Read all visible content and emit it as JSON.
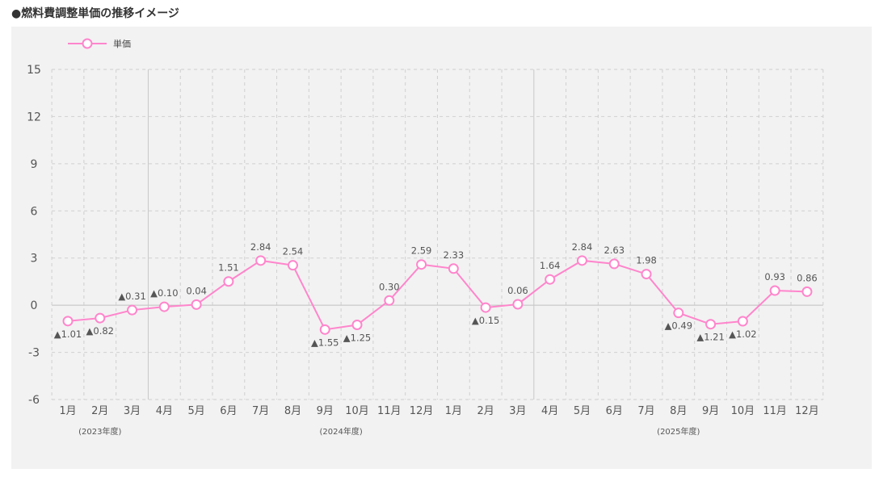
{
  "page_title": "●燃料費調整単価の推移イメージ",
  "colors": {
    "line": "#ff85cc",
    "marker_fill": "#ffffff",
    "panel_bg": "#f2f2f2",
    "grid": "#cfcfcf",
    "label": "#555555"
  },
  "chart_data": {
    "type": "line",
    "title": "燃料費調整単価の推移イメージ",
    "xlabel": "",
    "ylabel": "",
    "ylim": [
      -6,
      15
    ],
    "yticks": [
      15,
      12,
      9,
      6,
      3,
      0,
      -3,
      -6
    ],
    "grid": true,
    "legend_position": "top-left",
    "categories": [
      "1月",
      "2月",
      "3月",
      "4月",
      "5月",
      "6月",
      "7月",
      "8月",
      "9月",
      "10月",
      "11月",
      "12月",
      "1月",
      "2月",
      "3月",
      "4月",
      "5月",
      "6月",
      "7月",
      "8月",
      "9月",
      "10月",
      "11月",
      "12月"
    ],
    "fiscal_groups": [
      {
        "label": "(2023年度)",
        "start": 0,
        "end": 2
      },
      {
        "label": "(2024年度)",
        "start": 3,
        "end": 14
      },
      {
        "label": "(2025年度)",
        "start": 15,
        "end": 23
      }
    ],
    "series": [
      {
        "name": "単価",
        "values": [
          -1.01,
          -0.82,
          -0.31,
          -0.1,
          0.04,
          1.51,
          2.84,
          2.54,
          -1.55,
          -1.25,
          0.3,
          2.59,
          2.33,
          -0.15,
          0.06,
          1.64,
          2.84,
          2.63,
          1.98,
          -0.49,
          -1.21,
          -1.02,
          0.93,
          0.86
        ],
        "labels": [
          "▲1.01",
          "▲0.82",
          "▲0.31",
          "▲0.10",
          "0.04",
          "1.51",
          "2.84",
          "2.54",
          "▲1.55",
          "▲1.25",
          "0.30",
          "2.59",
          "2.33",
          "▲0.15",
          "0.06",
          "1.64",
          "2.84",
          "2.63",
          "1.98",
          "▲0.49",
          "▲1.21",
          "▲1.02",
          "0.93",
          "0.86"
        ],
        "label_positions": [
          "below",
          "below",
          "above",
          "above",
          "above",
          "above",
          "above",
          "above",
          "below",
          "below",
          "above",
          "above",
          "above",
          "below",
          "above",
          "above",
          "above",
          "above",
          "above",
          "below",
          "below",
          "below",
          "above",
          "above"
        ]
      }
    ]
  }
}
